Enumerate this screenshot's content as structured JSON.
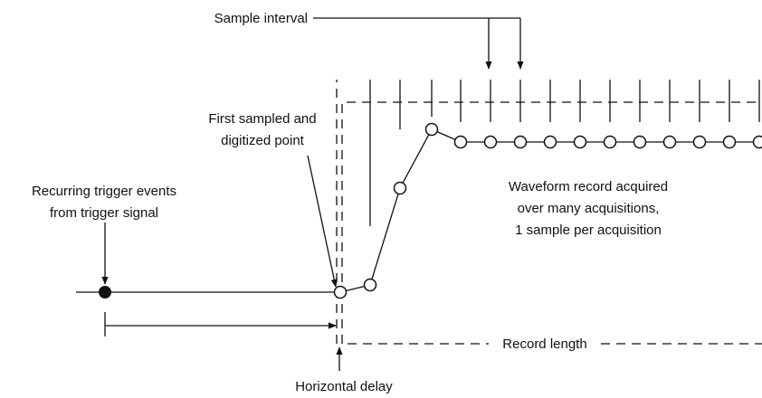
{
  "labels": {
    "sample_interval": [
      "Sample interval"
    ],
    "first_sampled": [
      "First sampled and",
      "digitized point"
    ],
    "trigger_events": [
      "Recurring trigger events",
      "from trigger signal"
    ],
    "waveform_record": [
      "Waveform record acquired",
      "over many acquisitions,",
      "1 sample per acquisition"
    ],
    "record_length": [
      "Record length"
    ],
    "horizontal_delay": [
      "Horizontal delay"
    ]
  }
}
